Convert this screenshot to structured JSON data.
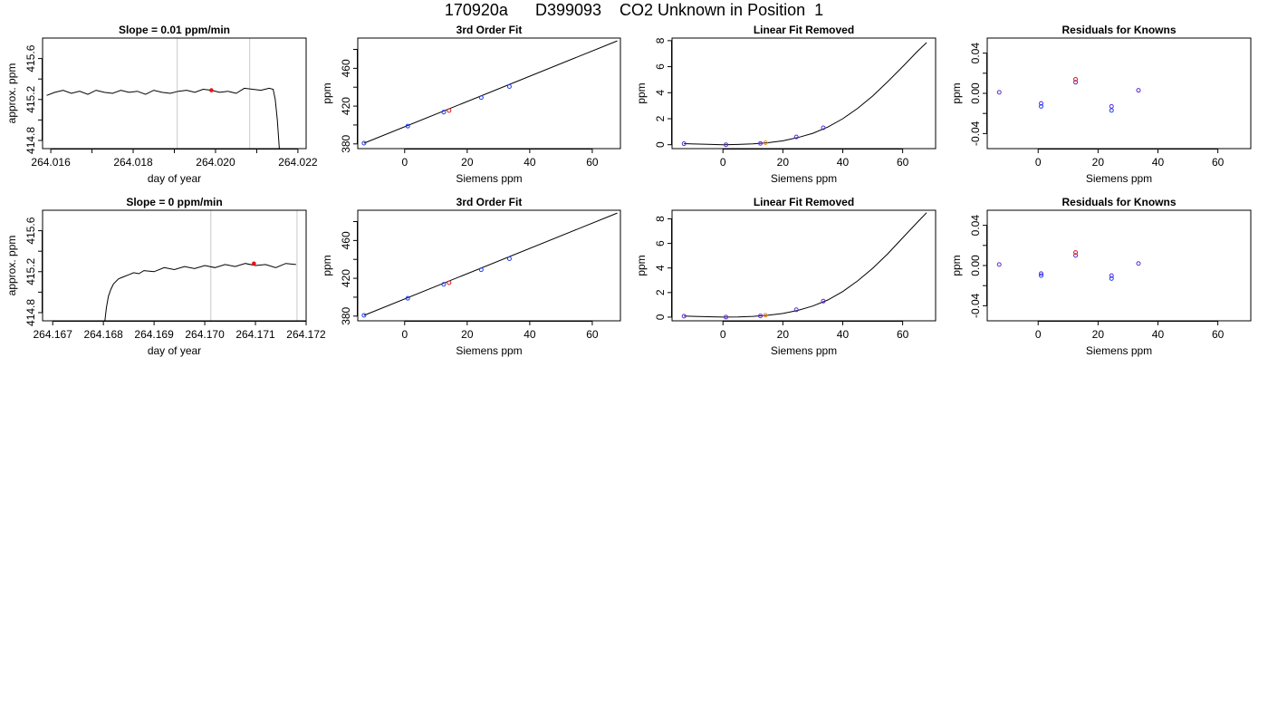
{
  "page": {
    "title": "170920a      D399093    CO2 Unknown in Position  1"
  },
  "chart_data": [
    {
      "type": "line",
      "title": "Slope =  0.01  ppm/min",
      "xlabel": "day of year",
      "ylabel": "approx. ppm",
      "xlim": [
        264.0158,
        264.0222
      ],
      "ylim": [
        414.72,
        415.8
      ],
      "xticks": [
        264.016,
        264.017,
        264.018,
        264.019,
        264.02,
        264.021,
        264.022
      ],
      "xtick_labels": [
        "264.016",
        "",
        "264.018",
        "",
        "264.020",
        "",
        "264.022"
      ],
      "yticks": [
        414.8,
        415.0,
        415.2,
        415.4,
        415.6
      ],
      "ytick_labels": [
        "414.8",
        "",
        "415.2",
        "",
        "415.6"
      ],
      "vlines": [
        264.01907,
        264.02083
      ],
      "series": [
        {
          "color": "#000000",
          "x": [
            264.0159,
            264.0161,
            264.0163,
            264.0165,
            264.0167,
            264.0169,
            264.0171,
            264.0173,
            264.0175,
            264.0177,
            264.0179,
            264.0181,
            264.0183,
            264.0185,
            264.0187,
            264.0189,
            264.0191,
            264.0193,
            264.0195,
            264.0197,
            264.0199,
            264.0201,
            264.0203,
            264.0205,
            264.0207,
            264.0209,
            264.0211,
            264.0213,
            264.0214,
            264.02145,
            264.0215,
            264.02155
          ],
          "y": [
            415.24,
            415.27,
            415.29,
            415.26,
            415.28,
            415.25,
            415.29,
            415.27,
            415.26,
            415.29,
            415.27,
            415.28,
            415.25,
            415.29,
            415.27,
            415.26,
            415.28,
            415.29,
            415.27,
            415.3,
            415.29,
            415.27,
            415.28,
            415.26,
            415.31,
            415.3,
            415.29,
            415.31,
            415.3,
            415.2,
            415.0,
            414.72
          ]
        }
      ],
      "highlight_points": [
        {
          "x": 264.0199,
          "y": 415.29,
          "color": "#e8141c"
        }
      ]
    },
    {
      "type": "line",
      "title": "3rd Order Fit",
      "xlabel": "Siemens ppm",
      "ylabel": "ppm",
      "xlim": [
        -15,
        69
      ],
      "ylim": [
        375,
        492
      ],
      "xticks": [
        0,
        20,
        40,
        60
      ],
      "xtick_labels": [
        "0",
        "20",
        "40",
        "60"
      ],
      "yticks": [
        380,
        400,
        420,
        440,
        460,
        480
      ],
      "ytick_labels": [
        "380",
        "",
        "420",
        "",
        "460",
        ""
      ],
      "series": [
        {
          "color": "#000000",
          "x": [
            -13,
            68
          ],
          "y": [
            380.8,
            489
          ]
        }
      ],
      "points": [
        {
          "x": -13,
          "y": 380.8,
          "color": "#1e3cf0"
        },
        {
          "x": 1,
          "y": 398.8,
          "color": "#1e3cf0"
        },
        {
          "x": 12.5,
          "y": 413.6,
          "color": "#1e3cf0"
        },
        {
          "x": 24.5,
          "y": 429.1,
          "color": "#1e3cf0"
        },
        {
          "x": 33.5,
          "y": 440.7,
          "color": "#1e3cf0"
        },
        {
          "x": 14.2,
          "y": 415.3,
          "color": "#e8141c"
        }
      ]
    },
    {
      "type": "line",
      "title": "Linear Fit Removed",
      "xlabel": "Siemens ppm",
      "ylabel": "ppm",
      "xlim": [
        -17,
        71
      ],
      "ylim": [
        -0.3,
        8.2
      ],
      "xticks": [
        0,
        20,
        40,
        60
      ],
      "xtick_labels": [
        "0",
        "20",
        "40",
        "60"
      ],
      "yticks": [
        0,
        2,
        4,
        6,
        8
      ],
      "ytick_labels": [
        "0",
        "2",
        "4",
        "6",
        "8"
      ],
      "series": [
        {
          "color": "#000000",
          "x": [
            -13,
            -5,
            0,
            5,
            10,
            15,
            20,
            25,
            30,
            35,
            40,
            45,
            50,
            55,
            60,
            65,
            68
          ],
          "y": [
            0.08,
            0.03,
            0.0,
            0.02,
            0.06,
            0.15,
            0.3,
            0.55,
            0.88,
            1.36,
            2.0,
            2.8,
            3.75,
            4.85,
            6.0,
            7.2,
            7.85
          ]
        }
      ],
      "points": [
        {
          "x": -13,
          "y": 0.08,
          "color": "#5a2ad2"
        },
        {
          "x": 1,
          "y": 0.0,
          "color": "#5a2ad2"
        },
        {
          "x": 12.5,
          "y": 0.1,
          "color": "#5a2ad2"
        },
        {
          "x": 24.5,
          "y": 0.6,
          "color": "#5a2ad2"
        },
        {
          "x": 33.5,
          "y": 1.3,
          "color": "#5a2ad2"
        },
        {
          "x": 14.2,
          "y": 0.15,
          "color": "#f08c1e"
        }
      ]
    },
    {
      "type": "scatter",
      "title": "Residuals for Knowns",
      "xlabel": "Siemens ppm",
      "ylabel": "ppm",
      "xlim": [
        -17,
        71
      ],
      "ylim": [
        -0.055,
        0.055
      ],
      "xticks": [
        0,
        20,
        40,
        60
      ],
      "xtick_labels": [
        "0",
        "20",
        "40",
        "60"
      ],
      "yticks": [
        -0.04,
        -0.02,
        0.0,
        0.02,
        0.04
      ],
      "ytick_labels": [
        "-0.04",
        "",
        "0.00",
        "",
        "0.04"
      ],
      "points": [
        {
          "x": -13,
          "y": 0.001,
          "color": "#5a2ad2"
        },
        {
          "x": 1,
          "y": -0.01,
          "color": "#5a2ad2"
        },
        {
          "x": 1,
          "y": -0.013,
          "color": "#1e3cf0"
        },
        {
          "x": 12.5,
          "y": 0.011,
          "color": "#5a2ad2"
        },
        {
          "x": 12.5,
          "y": 0.014,
          "color": "#e8141c"
        },
        {
          "x": 24.5,
          "y": -0.013,
          "color": "#5a2ad2"
        },
        {
          "x": 24.5,
          "y": -0.017,
          "color": "#1e3cf0"
        },
        {
          "x": 33.5,
          "y": 0.003,
          "color": "#5a2ad2"
        }
      ]
    },
    {
      "type": "line",
      "title": "Slope =  0  ppm/min",
      "xlabel": "day of year",
      "ylabel": "approx. ppm",
      "xlim": [
        264.1668,
        264.172
      ],
      "ylim": [
        414.72,
        415.8
      ],
      "xticks": [
        264.167,
        264.168,
        264.169,
        264.17,
        264.171,
        264.172
      ],
      "xtick_labels": [
        "264.167",
        "264.168",
        "264.169",
        "264.170",
        "264.171",
        "264.172"
      ],
      "yticks": [
        414.8,
        415.0,
        415.2,
        415.4,
        415.6
      ],
      "ytick_labels": [
        "414.8",
        "",
        "415.2",
        "",
        "415.6"
      ],
      "vlines": [
        264.17012,
        264.17182
      ],
      "series": [
        {
          "color": "#000000",
          "x": [
            264.16803,
            264.16806,
            264.1681,
            264.16815,
            264.1682,
            264.1683,
            264.1684,
            264.1685,
            264.1686,
            264.1687,
            264.1688,
            264.169,
            264.1692,
            264.1694,
            264.1696,
            264.1698,
            264.17,
            264.1702,
            264.1704,
            264.1706,
            264.1708,
            264.171,
            264.1712,
            264.1714,
            264.1716,
            264.1718
          ],
          "y": [
            414.72,
            414.85,
            414.96,
            415.03,
            415.08,
            415.13,
            415.15,
            415.17,
            415.19,
            415.18,
            415.21,
            415.2,
            415.24,
            415.22,
            415.25,
            415.23,
            415.26,
            415.24,
            415.27,
            415.25,
            415.28,
            415.26,
            415.27,
            415.24,
            415.28,
            415.27
          ]
        }
      ],
      "highlight_points": [
        {
          "x": 264.17097,
          "y": 415.28,
          "color": "#e8141c"
        }
      ]
    },
    {
      "type": "line",
      "title": "3rd Order Fit",
      "xlabel": "Siemens ppm",
      "ylabel": "ppm",
      "xlim": [
        -15,
        69
      ],
      "ylim": [
        375,
        492
      ],
      "xticks": [
        0,
        20,
        40,
        60
      ],
      "xtick_labels": [
        "0",
        "20",
        "40",
        "60"
      ],
      "yticks": [
        380,
        400,
        420,
        440,
        460,
        480
      ],
      "ytick_labels": [
        "380",
        "",
        "420",
        "",
        "460",
        ""
      ],
      "series": [
        {
          "color": "#000000",
          "x": [
            -13,
            68
          ],
          "y": [
            380.8,
            489
          ]
        }
      ],
      "points": [
        {
          "x": -13,
          "y": 380.8,
          "color": "#1e3cf0"
        },
        {
          "x": 1,
          "y": 398.8,
          "color": "#1e3cf0"
        },
        {
          "x": 12.5,
          "y": 413.6,
          "color": "#1e3cf0"
        },
        {
          "x": 24.5,
          "y": 429.1,
          "color": "#1e3cf0"
        },
        {
          "x": 33.5,
          "y": 440.7,
          "color": "#1e3cf0"
        },
        {
          "x": 14.2,
          "y": 415.3,
          "color": "#e8141c"
        }
      ]
    },
    {
      "type": "line",
      "title": "Linear Fit Removed",
      "xlabel": "Siemens ppm",
      "ylabel": "ppm",
      "xlim": [
        -17,
        71
      ],
      "ylim": [
        -0.3,
        8.7
      ],
      "xticks": [
        0,
        20,
        40,
        60
      ],
      "xtick_labels": [
        "0",
        "20",
        "40",
        "60"
      ],
      "yticks": [
        0,
        2,
        4,
        6,
        8
      ],
      "ytick_labels": [
        "0",
        "2",
        "4",
        "6",
        "8"
      ],
      "series": [
        {
          "color": "#000000",
          "x": [
            -13,
            -5,
            0,
            5,
            10,
            15,
            20,
            25,
            30,
            35,
            40,
            45,
            50,
            55,
            60,
            65,
            68
          ],
          "y": [
            0.08,
            0.03,
            0.0,
            0.02,
            0.06,
            0.15,
            0.3,
            0.55,
            0.9,
            1.4,
            2.08,
            2.95,
            3.98,
            5.15,
            6.45,
            7.75,
            8.5
          ]
        }
      ],
      "points": [
        {
          "x": -13,
          "y": 0.08,
          "color": "#5a2ad2"
        },
        {
          "x": 1,
          "y": 0.0,
          "color": "#5a2ad2"
        },
        {
          "x": 12.5,
          "y": 0.1,
          "color": "#5a2ad2"
        },
        {
          "x": 24.5,
          "y": 0.6,
          "color": "#5a2ad2"
        },
        {
          "x": 33.5,
          "y": 1.3,
          "color": "#5a2ad2"
        },
        {
          "x": 14.2,
          "y": 0.15,
          "color": "#f08c1e"
        }
      ]
    },
    {
      "type": "scatter",
      "title": "Residuals for Knowns",
      "xlabel": "Siemens ppm",
      "ylabel": "ppm",
      "xlim": [
        -17,
        71
      ],
      "ylim": [
        -0.055,
        0.055
      ],
      "xticks": [
        0,
        20,
        40,
        60
      ],
      "xtick_labels": [
        "0",
        "20",
        "40",
        "60"
      ],
      "yticks": [
        -0.04,
        -0.02,
        0.0,
        0.02,
        0.04
      ],
      "ytick_labels": [
        "-0.04",
        "",
        "0.00",
        "",
        "0.04"
      ],
      "points": [
        {
          "x": -13,
          "y": 0.001,
          "color": "#5a2ad2"
        },
        {
          "x": 1,
          "y": -0.008,
          "color": "#5a2ad2"
        },
        {
          "x": 1,
          "y": -0.01,
          "color": "#1e3cf0"
        },
        {
          "x": 12.5,
          "y": 0.01,
          "color": "#5a2ad2"
        },
        {
          "x": 12.5,
          "y": 0.013,
          "color": "#e8141c"
        },
        {
          "x": 24.5,
          "y": -0.01,
          "color": "#5a2ad2"
        },
        {
          "x": 24.5,
          "y": -0.013,
          "color": "#1e3cf0"
        },
        {
          "x": 33.5,
          "y": 0.002,
          "color": "#5a2ad2"
        }
      ]
    }
  ]
}
